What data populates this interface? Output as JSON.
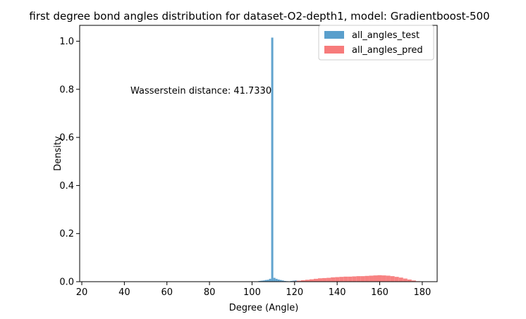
{
  "chart_data": {
    "type": "bar",
    "title": "first degree bond angles distribution for dataset-O2-depth1, model: Gradientboost-500",
    "xlabel": "Degree (Angle)",
    "ylabel": "Density",
    "xlim": [
      19,
      187
    ],
    "ylim": [
      0,
      1.066
    ],
    "xticks": [
      20,
      40,
      60,
      80,
      100,
      120,
      140,
      160,
      180
    ],
    "yticks": [
      0.0,
      0.2,
      0.4,
      0.6,
      0.8,
      1.0
    ],
    "xtick_labels": [
      "20",
      "40",
      "60",
      "80",
      "100",
      "120",
      "140",
      "160",
      "180"
    ],
    "ytick_labels": [
      "0.0",
      "0.2",
      "0.4",
      "0.6",
      "0.8",
      "1.0"
    ],
    "grid": false,
    "legend": "upper right",
    "annotation": "Wasserstein distance: 41.7330",
    "series": [
      {
        "name": "all_angles_test",
        "color": "#5a9fcc",
        "bins": [
          {
            "x": 103.5,
            "w": 1,
            "y": 0.003
          },
          {
            "x": 104.5,
            "w": 1,
            "y": 0.004
          },
          {
            "x": 105.5,
            "w": 1,
            "y": 0.005
          },
          {
            "x": 106.5,
            "w": 1,
            "y": 0.007
          },
          {
            "x": 107.5,
            "w": 1,
            "y": 0.008
          },
          {
            "x": 108.5,
            "w": 1,
            "y": 0.012
          },
          {
            "x": 109.5,
            "w": 1,
            "y": 1.015
          },
          {
            "x": 110.5,
            "w": 1,
            "y": 0.016
          },
          {
            "x": 111.5,
            "w": 1,
            "y": 0.012
          },
          {
            "x": 112.5,
            "w": 1,
            "y": 0.009
          },
          {
            "x": 113.5,
            "w": 1,
            "y": 0.007
          },
          {
            "x": 114.5,
            "w": 1,
            "y": 0.005
          },
          {
            "x": 115.5,
            "w": 1,
            "y": 0.003
          },
          {
            "x": 116.5,
            "w": 1,
            "y": 0.002
          },
          {
            "x": 118.5,
            "w": 1,
            "y": 0.003
          },
          {
            "x": 119.5,
            "w": 1,
            "y": 0.004
          },
          {
            "x": 120.5,
            "w": 1,
            "y": 0.005
          },
          {
            "x": 121.5,
            "w": 1,
            "y": 0.003
          }
        ]
      },
      {
        "name": "all_angles_pred",
        "color": "#f77b7b",
        "bins": [
          {
            "x": 120,
            "w": 2,
            "y": 0.002
          },
          {
            "x": 122,
            "w": 2,
            "y": 0.004
          },
          {
            "x": 124,
            "w": 2,
            "y": 0.006
          },
          {
            "x": 126,
            "w": 2,
            "y": 0.008
          },
          {
            "x": 128,
            "w": 2,
            "y": 0.01
          },
          {
            "x": 130,
            "w": 2,
            "y": 0.012
          },
          {
            "x": 132,
            "w": 2,
            "y": 0.014
          },
          {
            "x": 134,
            "w": 2,
            "y": 0.015
          },
          {
            "x": 136,
            "w": 2,
            "y": 0.016
          },
          {
            "x": 138,
            "w": 2,
            "y": 0.018
          },
          {
            "x": 140,
            "w": 2,
            "y": 0.019
          },
          {
            "x": 142,
            "w": 2,
            "y": 0.02
          },
          {
            "x": 144,
            "w": 2,
            "y": 0.021
          },
          {
            "x": 146,
            "w": 2,
            "y": 0.021
          },
          {
            "x": 148,
            "w": 2,
            "y": 0.022
          },
          {
            "x": 150,
            "w": 2,
            "y": 0.023
          },
          {
            "x": 152,
            "w": 2,
            "y": 0.023
          },
          {
            "x": 154,
            "w": 2,
            "y": 0.024
          },
          {
            "x": 156,
            "w": 2,
            "y": 0.025
          },
          {
            "x": 158,
            "w": 2,
            "y": 0.026
          },
          {
            "x": 160,
            "w": 2,
            "y": 0.027
          },
          {
            "x": 162,
            "w": 2,
            "y": 0.026
          },
          {
            "x": 164,
            "w": 2,
            "y": 0.025
          },
          {
            "x": 166,
            "w": 2,
            "y": 0.023
          },
          {
            "x": 168,
            "w": 2,
            "y": 0.02
          },
          {
            "x": 170,
            "w": 2,
            "y": 0.017
          },
          {
            "x": 172,
            "w": 2,
            "y": 0.013
          },
          {
            "x": 174,
            "w": 2,
            "y": 0.009
          },
          {
            "x": 176,
            "w": 2,
            "y": 0.005
          },
          {
            "x": 178,
            "w": 2,
            "y": 0.002
          }
        ]
      }
    ]
  }
}
